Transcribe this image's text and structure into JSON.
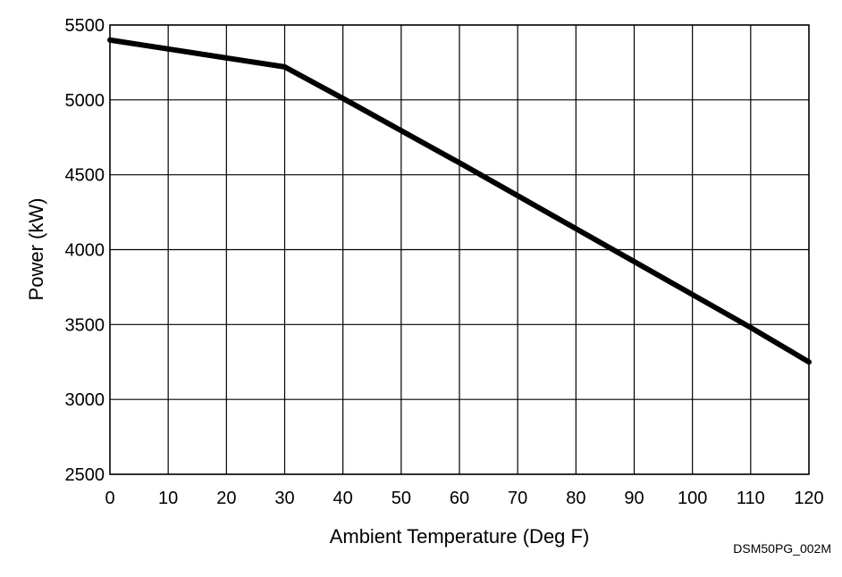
{
  "chart_data": {
    "type": "line",
    "title": "",
    "xlabel": "Ambient Temperature (Deg F)",
    "ylabel": "Power (kW)",
    "xlim": [
      0,
      120
    ],
    "ylim": [
      2500,
      5500
    ],
    "x_ticks": [
      "0",
      "10",
      "20",
      "30",
      "40",
      "50",
      "60",
      "70",
      "80",
      "90",
      "100",
      "110",
      "120"
    ],
    "y_ticks": [
      "2500",
      "3000",
      "3500",
      "4000",
      "4500",
      "5000",
      "5500"
    ],
    "grid": true,
    "legend": "none",
    "series": [
      {
        "color": "#000000",
        "points": [
          {
            "x": 0,
            "y": 5400
          },
          {
            "x": 10,
            "y": 5340
          },
          {
            "x": 20,
            "y": 5280
          },
          {
            "x": 30,
            "y": 5220
          },
          {
            "x": 40,
            "y": 5010
          },
          {
            "x": 50,
            "y": 4795
          },
          {
            "x": 60,
            "y": 4580
          },
          {
            "x": 70,
            "y": 4360
          },
          {
            "x": 80,
            "y": 4140
          },
          {
            "x": 90,
            "y": 3920
          },
          {
            "x": 100,
            "y": 3700
          },
          {
            "x": 110,
            "y": 3480
          },
          {
            "x": 120,
            "y": 3250
          }
        ]
      }
    ]
  },
  "figure_id": "DSM50PG_002M"
}
